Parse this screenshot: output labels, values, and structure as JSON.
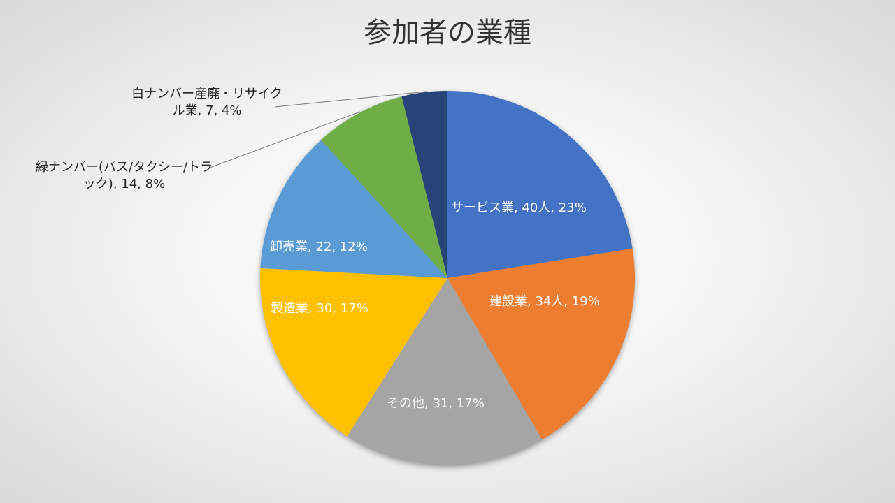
{
  "chart_data": {
    "type": "pie",
    "title": "参加者の業種",
    "start": "12 o'clock, clockwise",
    "slices": [
      {
        "name": "サービス業",
        "value": 40,
        "unit": "人",
        "percent": "23%",
        "color": "#4472C4"
      },
      {
        "name": "建設業",
        "value": 34,
        "unit": "人",
        "percent": "19%",
        "color": "#ED7D31"
      },
      {
        "name": "その他",
        "value": 31,
        "unit": "",
        "percent": "17%",
        "color": "#A5A5A5"
      },
      {
        "name": "製造業",
        "value": 30,
        "unit": "",
        "percent": "17%",
        "color": "#FFC000"
      },
      {
        "name": "卸売業",
        "value": 22,
        "unit": "",
        "percent": "12%",
        "color": "#5B9BD5"
      },
      {
        "name": "緑ナンバー(バス/タクシー/トラック)",
        "value": 14,
        "unit": "",
        "percent": "8%",
        "color": "#70AD47"
      },
      {
        "name": "白ナンバー産廃・リサイクル業",
        "value": 7,
        "unit": "",
        "percent": "4%",
        "color": "#264478"
      }
    ]
  }
}
